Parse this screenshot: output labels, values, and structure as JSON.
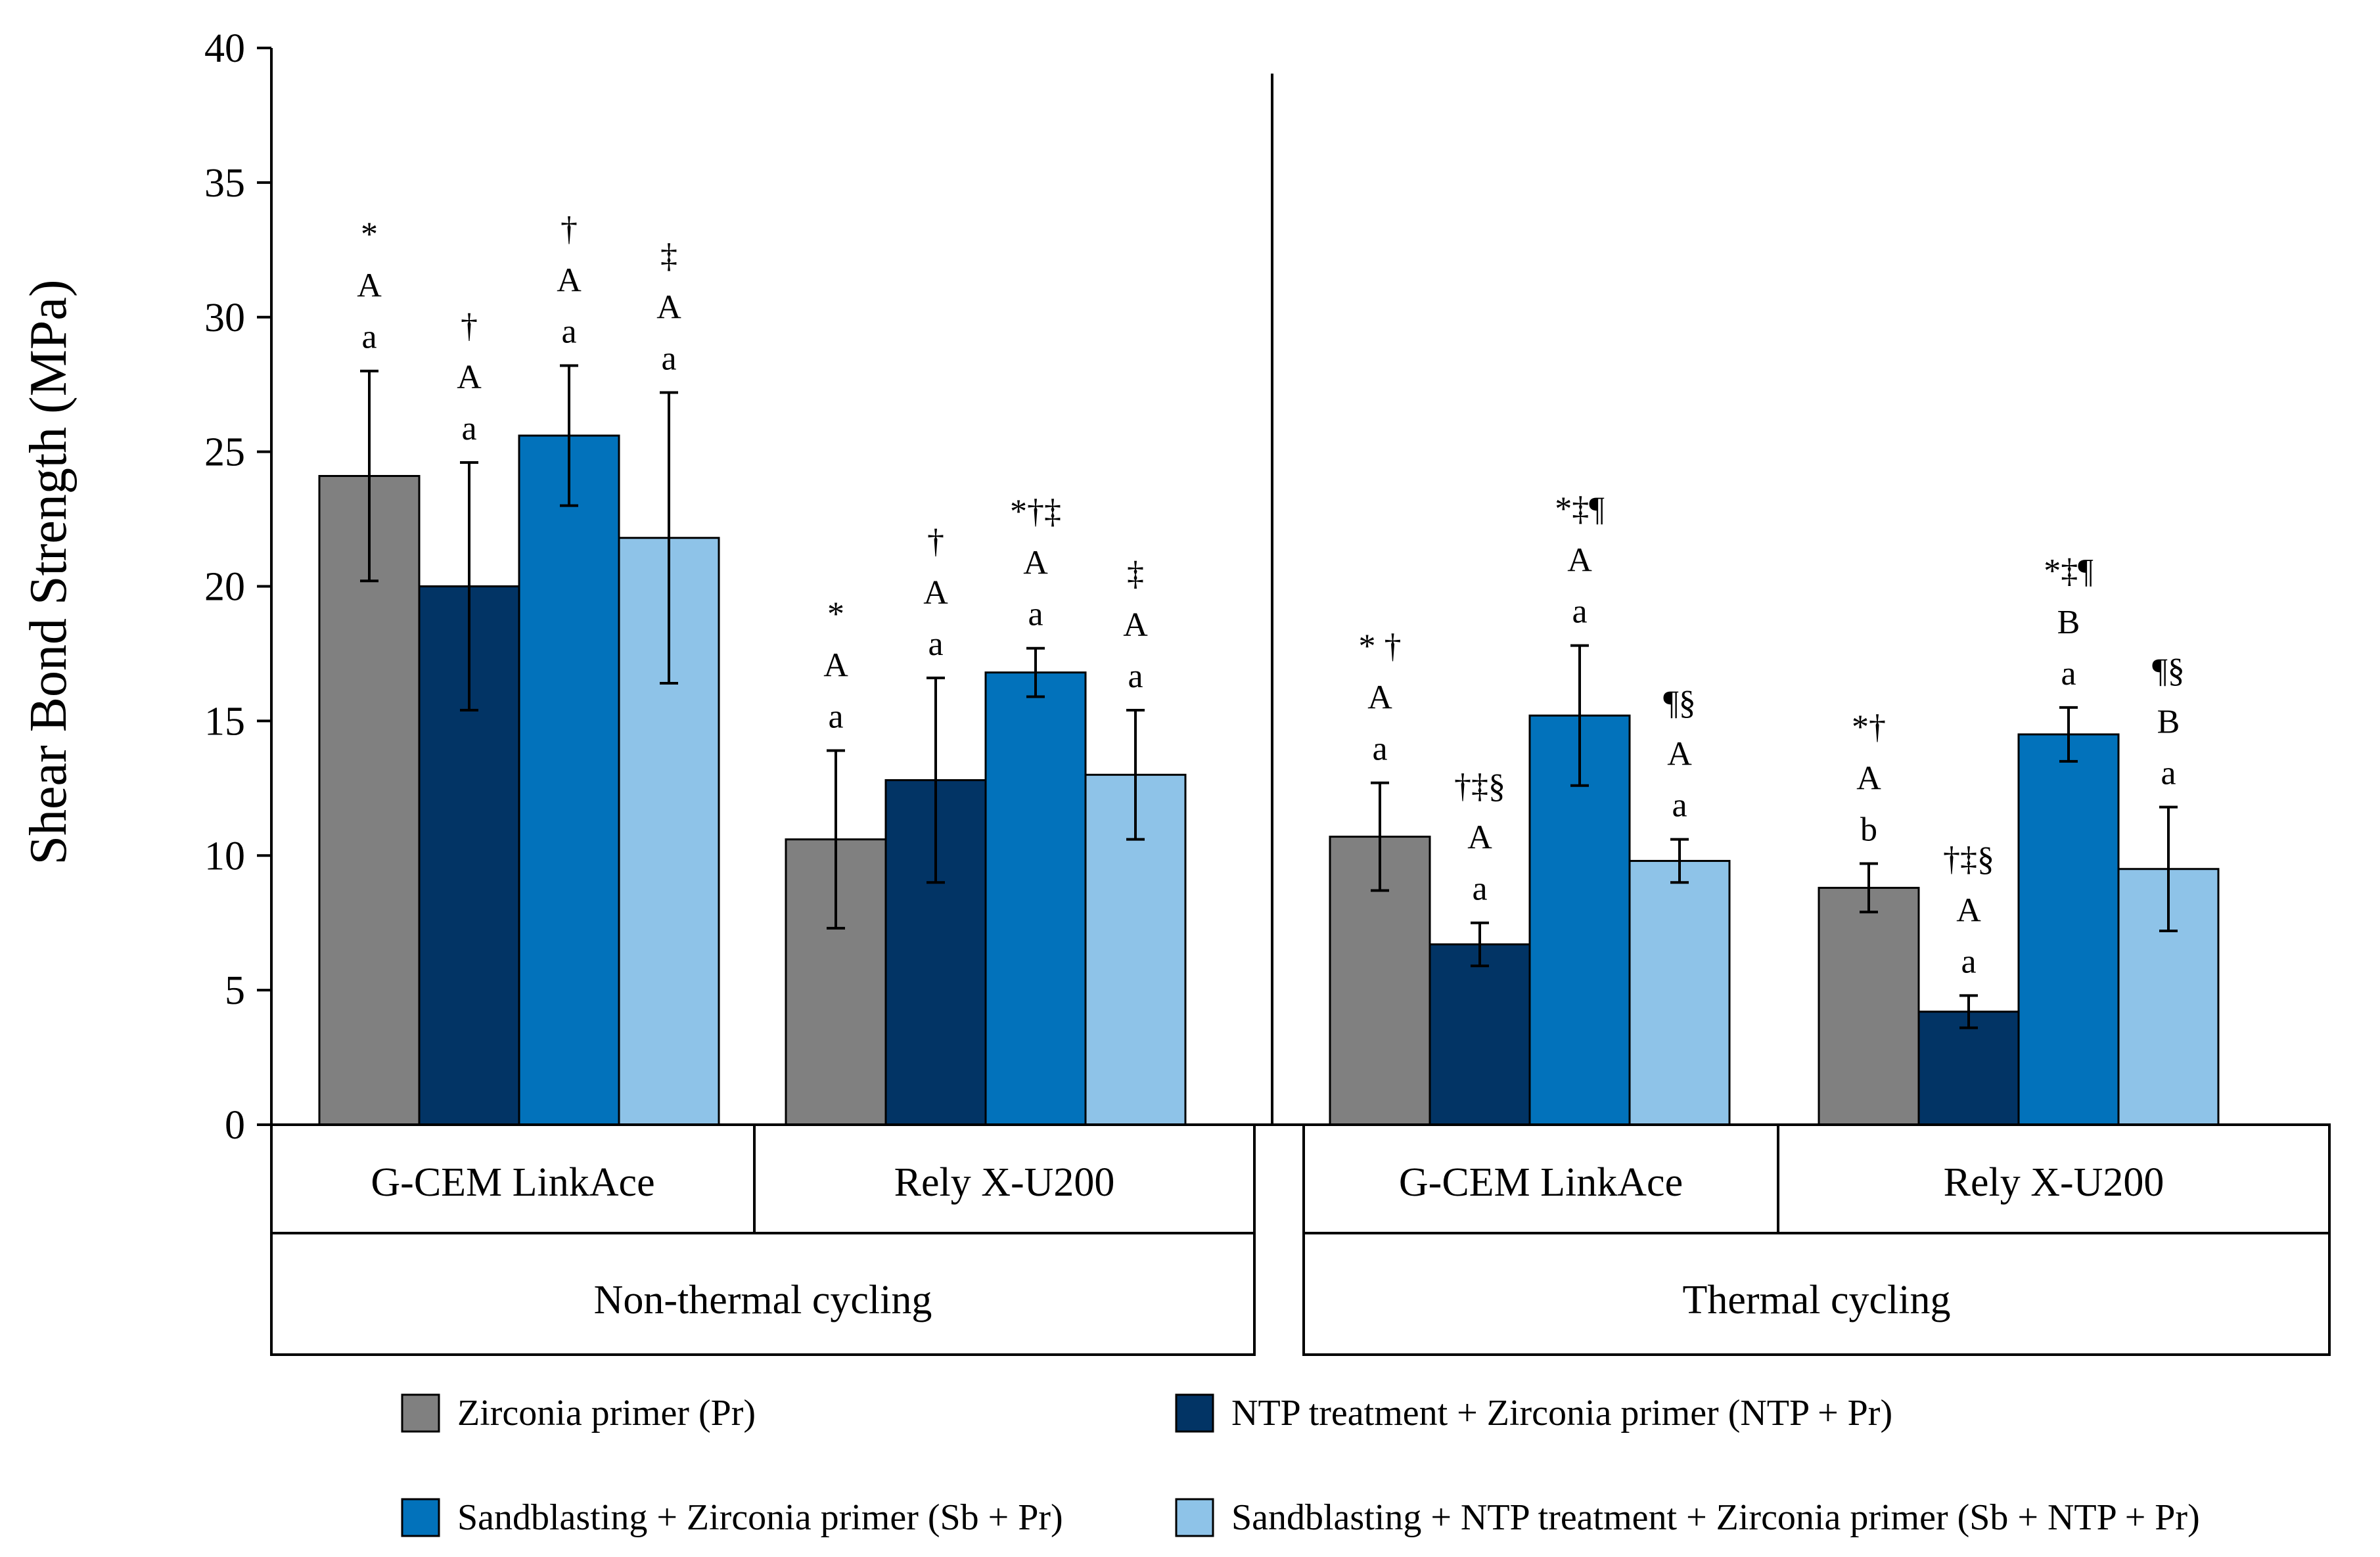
{
  "chart_data": {
    "type": "bar",
    "title": "",
    "xlabel": "",
    "ylabel": "Shear Bond Strength (MPa)",
    "ylim": [
      0,
      40
    ],
    "yticks": [
      "0",
      "5",
      "10",
      "15",
      "20",
      "25",
      "30",
      "35",
      "40"
    ],
    "grid": false,
    "legend_position": "bottom",
    "cement_groups": [
      {
        "label": "G-CEM LinkAce",
        "condition": "Non-thermal cycling"
      },
      {
        "label": "Rely X-U200",
        "condition": "Non-thermal cycling"
      },
      {
        "label": "G-CEM LinkAce",
        "condition": "Thermal cycling"
      },
      {
        "label": "Rely X-U200",
        "condition": "Thermal cycling"
      }
    ],
    "conditions": [
      "Non-thermal cycling",
      "Thermal cycling"
    ],
    "series": [
      {
        "name": "Zirconia primer (Pr)",
        "color": "#808080",
        "values": [
          24.1,
          10.6,
          10.7,
          8.8
        ],
        "errors": [
          3.9,
          3.3,
          2.0,
          0.9
        ],
        "annotations": [
          [
            "*",
            "A",
            "a"
          ],
          [
            "*",
            "A",
            "a"
          ],
          [
            "* †",
            "A",
            "a"
          ],
          [
            "*†",
            "A",
            "b"
          ]
        ]
      },
      {
        "name": "NTP treatment + Zirconia primer (NTP + Pr)",
        "color": "#023465",
        "values": [
          20.0,
          12.8,
          6.7,
          4.2
        ],
        "errors": [
          4.6,
          3.8,
          0.8,
          0.6
        ],
        "annotations": [
          [
            "†",
            "A",
            "a"
          ],
          [
            "†",
            "A",
            "a"
          ],
          [
            "†‡§",
            "A",
            "a"
          ],
          [
            "†‡§",
            "A",
            "a"
          ]
        ]
      },
      {
        "name": "Sandblasting + Zirconia primer (Sb + Pr)",
        "color": "#0272BB",
        "values": [
          25.6,
          16.8,
          15.2,
          14.5
        ],
        "errors": [
          2.6,
          0.9,
          2.6,
          1.0
        ],
        "annotations": [
          [
            "†",
            "A",
            "a"
          ],
          [
            "*†‡",
            "A",
            "a"
          ],
          [
            "*‡¶",
            "A",
            "a"
          ],
          [
            "*‡¶",
            "B",
            "a"
          ]
        ]
      },
      {
        "name": "Sandblasting + NTP treatment + Zirconia primer (Sb + NTP + Pr)",
        "color": "#8EC3E8",
        "values": [
          21.8,
          13.0,
          9.8,
          9.5
        ],
        "errors": [
          5.4,
          2.4,
          0.8,
          2.3
        ],
        "annotations": [
          [
            "‡",
            "A",
            "a"
          ],
          [
            "‡",
            "A",
            "a"
          ],
          [
            "¶§",
            "A",
            "a"
          ],
          [
            "¶§",
            "B",
            "a"
          ]
        ]
      }
    ]
  }
}
